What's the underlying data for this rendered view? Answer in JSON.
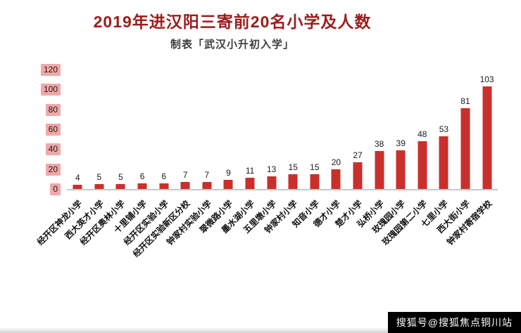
{
  "chart_data": {
    "type": "bar",
    "title": "2019年进汉阳三寄前20名小学及人数",
    "subtitle": "制表「武汉小升初入学」",
    "categories": [
      "经开区神龙小学",
      "西大英才小学",
      "经开区奥林小学",
      "十里铺小学",
      "经开区实验小学",
      "经开区实验新区分校",
      "钟家村实验小学",
      "翠微路小学",
      "墨水湖小学",
      "五里墩小学",
      "钟家村小学",
      "知音小学",
      "德才小学",
      "楚才小学",
      "弘桥小学",
      "玫瑰园小学",
      "玫瑰园第二小学",
      "七里小学",
      "西大街小学",
      "钟家村寄宿学校"
    ],
    "values": [
      4,
      5,
      5,
      6,
      6,
      7,
      7,
      9,
      11,
      13,
      15,
      15,
      20,
      27,
      38,
      39,
      48,
      53,
      81,
      103
    ],
    "xlabel": "",
    "ylabel": "",
    "ylim": [
      0,
      120
    ],
    "yticks": [
      0,
      20,
      40,
      60,
      80,
      100,
      120
    ],
    "grid": false,
    "legend_position": "none",
    "bar_color": "#c9302c",
    "title_color": "#9c1c1c",
    "ytick_background": "#f0a8a8",
    "value_label_color": "#1a1a1a"
  },
  "watermark": {
    "text": "搜狐号@搜狐焦点铜川站",
    "background": "#000000",
    "color": "#ffffff"
  }
}
